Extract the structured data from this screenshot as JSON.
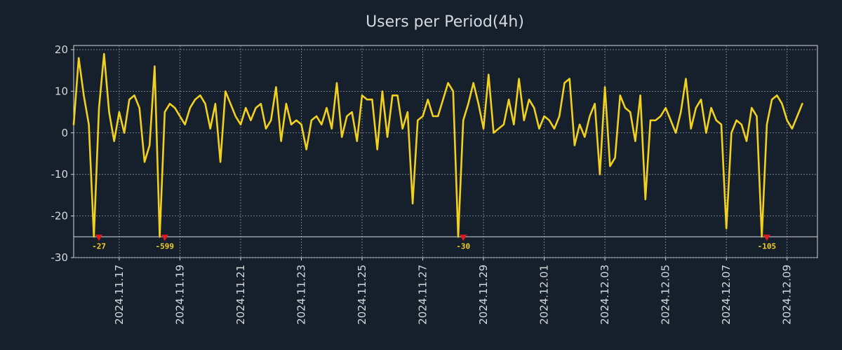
{
  "chart_data": {
    "type": "line",
    "title": "Users per Period(4h)",
    "xlabel": "",
    "ylabel": "",
    "ylim": [
      -30,
      21
    ],
    "y_ticks": [
      20,
      10,
      0,
      -10,
      -20,
      -30
    ],
    "x_range": [
      "2024-11-15T12:00",
      "2024-12-10T00:00"
    ],
    "x_ticks": [
      "2024.11.17",
      "2024.11.19",
      "2024.11.21",
      "2024.11.23",
      "2024.11.25",
      "2024.11.27",
      "2024.11.29",
      "2024.12.01",
      "2024.12.03",
      "2024.12.05",
      "2024.12.07",
      "2024.12.09"
    ],
    "grid": true,
    "clip_floor": -25,
    "series": [
      {
        "name": "Users",
        "color": "#f2d01e",
        "start": "2024-11-15T12:00",
        "step_hours": 4,
        "values": [
          2,
          18,
          9,
          2,
          -25,
          6,
          19,
          5,
          -2,
          5,
          0,
          8,
          9,
          6,
          -7,
          -3,
          16,
          -25,
          5,
          7,
          6,
          4,
          2,
          6,
          8,
          9,
          7,
          1,
          7,
          -7,
          10,
          7,
          4,
          2,
          6,
          3,
          6,
          7,
          1,
          3,
          11,
          -2,
          7,
          2,
          3,
          2,
          -4,
          3,
          4,
          2,
          6,
          1,
          12,
          -1,
          4,
          5,
          -2,
          9,
          8,
          8,
          -4,
          10,
          -1,
          9,
          9,
          1,
          5,
          -17,
          3,
          4,
          8,
          4,
          4,
          8,
          12,
          10,
          -25,
          3,
          7,
          12,
          7,
          1,
          14,
          0,
          1,
          2,
          8,
          2,
          13,
          3,
          8,
          6,
          1,
          4,
          3,
          1,
          4,
          12,
          13,
          -3,
          2,
          -1,
          4,
          7,
          -10,
          11,
          -8,
          -6,
          9,
          6,
          5,
          -2,
          9,
          -16,
          3,
          3,
          4,
          6,
          3,
          0,
          5,
          13,
          1,
          6,
          8,
          0,
          6,
          3,
          2,
          -23,
          0,
          3,
          2,
          -2,
          6,
          4,
          -25,
          2,
          8,
          9,
          7,
          3,
          1,
          4,
          7
        ]
      }
    ],
    "clip_markers": [
      {
        "date": "2024-11-16T08:00",
        "label": "-27"
      },
      {
        "date": "2024-11-18T12:00",
        "label": "-599"
      },
      {
        "date": "2024-11-28T08:00",
        "label": "-30"
      },
      {
        "date": "2024-12-08T08:00",
        "label": "-105"
      }
    ]
  }
}
